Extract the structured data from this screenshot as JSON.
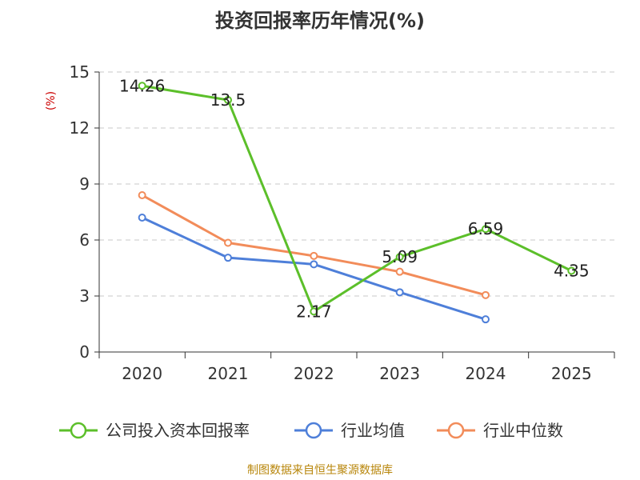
{
  "chart_data": {
    "type": "line",
    "title": "投资回报率历年情况(%)",
    "ylabel": "(%)",
    "xlabel": "",
    "categories": [
      "2020",
      "2021",
      "2022",
      "2023",
      "2024",
      "2025"
    ],
    "yticks": [
      0,
      3,
      6,
      9,
      12,
      15
    ],
    "ylim": [
      0,
      15
    ],
    "grid": "dashed-horizontal",
    "legend_position": "bottom",
    "series": [
      {
        "name": "公司投入资本回报率",
        "color": "#5cbf2a",
        "values": [
          14.26,
          13.5,
          2.17,
          5.09,
          6.59,
          4.35
        ],
        "labels": [
          "14.26",
          "13.5",
          "2.17",
          "5.09",
          "6.59",
          "4.35"
        ],
        "show_labels": true
      },
      {
        "name": "行业均值",
        "color": "#4e7fd9",
        "values": [
          7.2,
          5.05,
          4.7,
          3.2,
          1.75,
          null
        ],
        "show_labels": false
      },
      {
        "name": "行业中位数",
        "color": "#f28c5a",
        "values": [
          8.4,
          5.85,
          5.15,
          4.3,
          3.05,
          null
        ],
        "show_labels": false
      }
    ]
  },
  "source": "制图数据来自恒生聚源数据库"
}
